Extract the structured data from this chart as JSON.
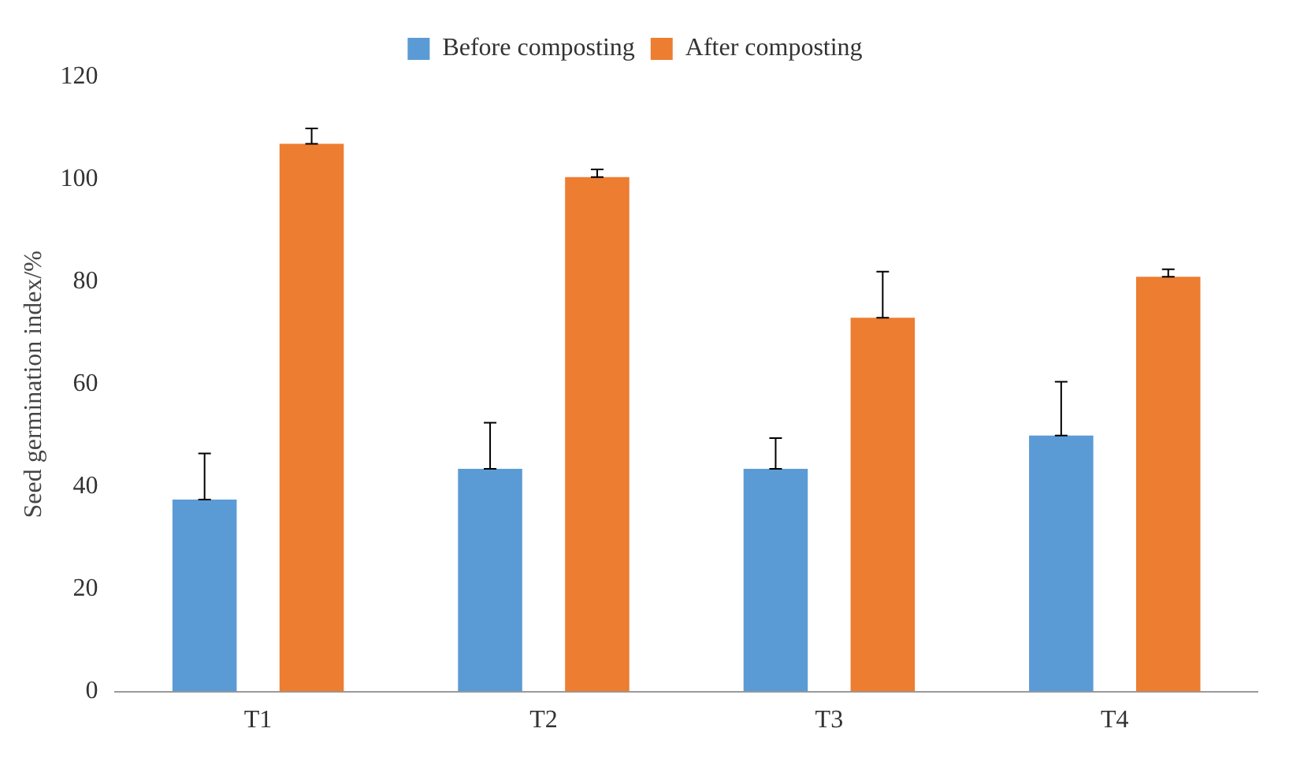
{
  "chart_data": {
    "type": "bar",
    "ylabel": "Seed germination index/%",
    "categories": [
      "T1",
      "T2",
      "T3",
      "T4"
    ],
    "series": [
      {
        "name": "Before composting",
        "color": "#5b9bd5",
        "values": [
          37.5,
          43.5,
          43.5,
          50
        ],
        "errors": [
          [
            37.5,
            46.5
          ],
          [
            43.5,
            52.5
          ],
          [
            43.5,
            49.5
          ],
          [
            50,
            60.5
          ]
        ]
      },
      {
        "name": "After composting",
        "color": "#ed7d31",
        "values": [
          107,
          100.5,
          73,
          81
        ],
        "errors": [
          [
            107,
            110
          ],
          [
            100.5,
            102
          ],
          [
            73,
            82
          ],
          [
            81,
            82.5
          ]
        ]
      }
    ],
    "ylim": [
      0,
      120
    ],
    "yticks": [
      0,
      20,
      40,
      60,
      80,
      100,
      120
    ],
    "grid": false,
    "legend": "top"
  }
}
